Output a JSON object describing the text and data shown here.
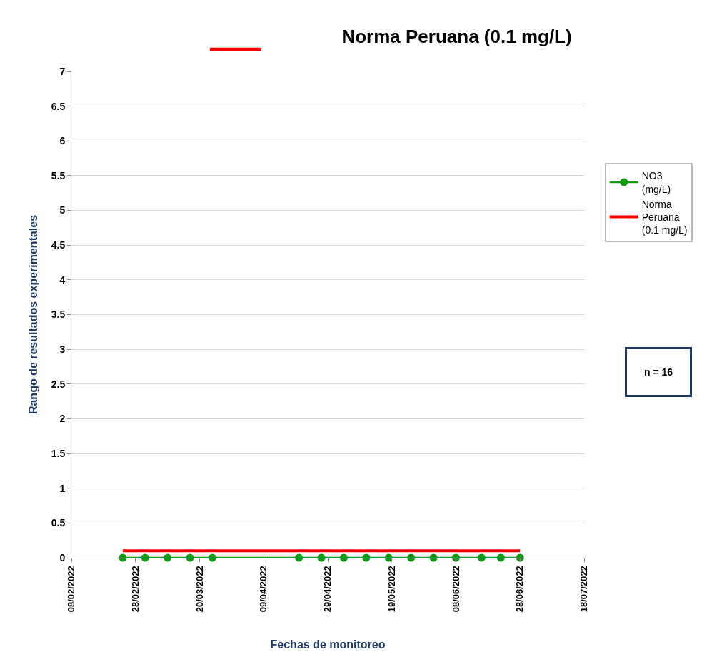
{
  "chart_data": {
    "type": "line",
    "title": "Norma Peruana (0.1 mg/L)",
    "xlabel": "Fechas de monitoreo",
    "ylabel": "Rango de resultados experimentales",
    "series": [
      {
        "name": "NO3 (mg/L)",
        "color": "#129a12",
        "marker": "circle",
        "x": [
          "2022-02-24",
          "2022-03-03",
          "2022-03-10",
          "2022-03-17",
          "2022-03-24",
          "2022-04-20",
          "2022-04-27",
          "2022-05-04",
          "2022-05-11",
          "2022-05-18",
          "2022-05-25",
          "2022-06-01",
          "2022-06-08",
          "2022-06-16",
          "2022-06-22",
          "2022-06-28"
        ],
        "values": [
          0,
          0,
          0,
          0,
          0,
          0,
          0,
          0,
          0,
          0,
          0,
          0,
          0,
          0,
          0,
          0
        ]
      },
      {
        "name": "Norma Peruana (0.1 mg/L)",
        "color": "#ff0000",
        "marker": "none",
        "x": [
          "2022-02-24",
          "2022-06-28"
        ],
        "values": [
          0.1,
          0.1
        ]
      }
    ],
    "xlim": [
      "2022-02-08",
      "2022-07-18"
    ],
    "xticks": [
      {
        "value": "2022-02-08",
        "label": "08/02/2022"
      },
      {
        "value": "2022-02-28",
        "label": "28/02/2022"
      },
      {
        "value": "2022-03-20",
        "label": "20/03/2022"
      },
      {
        "value": "2022-04-09",
        "label": "09/04/2022"
      },
      {
        "value": "2022-04-29",
        "label": "29/04/2022"
      },
      {
        "value": "2022-05-19",
        "label": "19/05/2022"
      },
      {
        "value": "2022-06-08",
        "label": "08/06/2022"
      },
      {
        "value": "2022-06-28",
        "label": "28/06/2022"
      },
      {
        "value": "2022-07-18",
        "label": "18/07/2022"
      }
    ],
    "ylim": [
      0,
      7
    ],
    "yticks": [
      0,
      0.5,
      1,
      1.5,
      2,
      2.5,
      3,
      3.5,
      4,
      4.5,
      5,
      5.5,
      6,
      6.5,
      7
    ],
    "grid": "y",
    "legend": "right",
    "line_style": "solid",
    "annotations": [
      "n = 16"
    ]
  }
}
